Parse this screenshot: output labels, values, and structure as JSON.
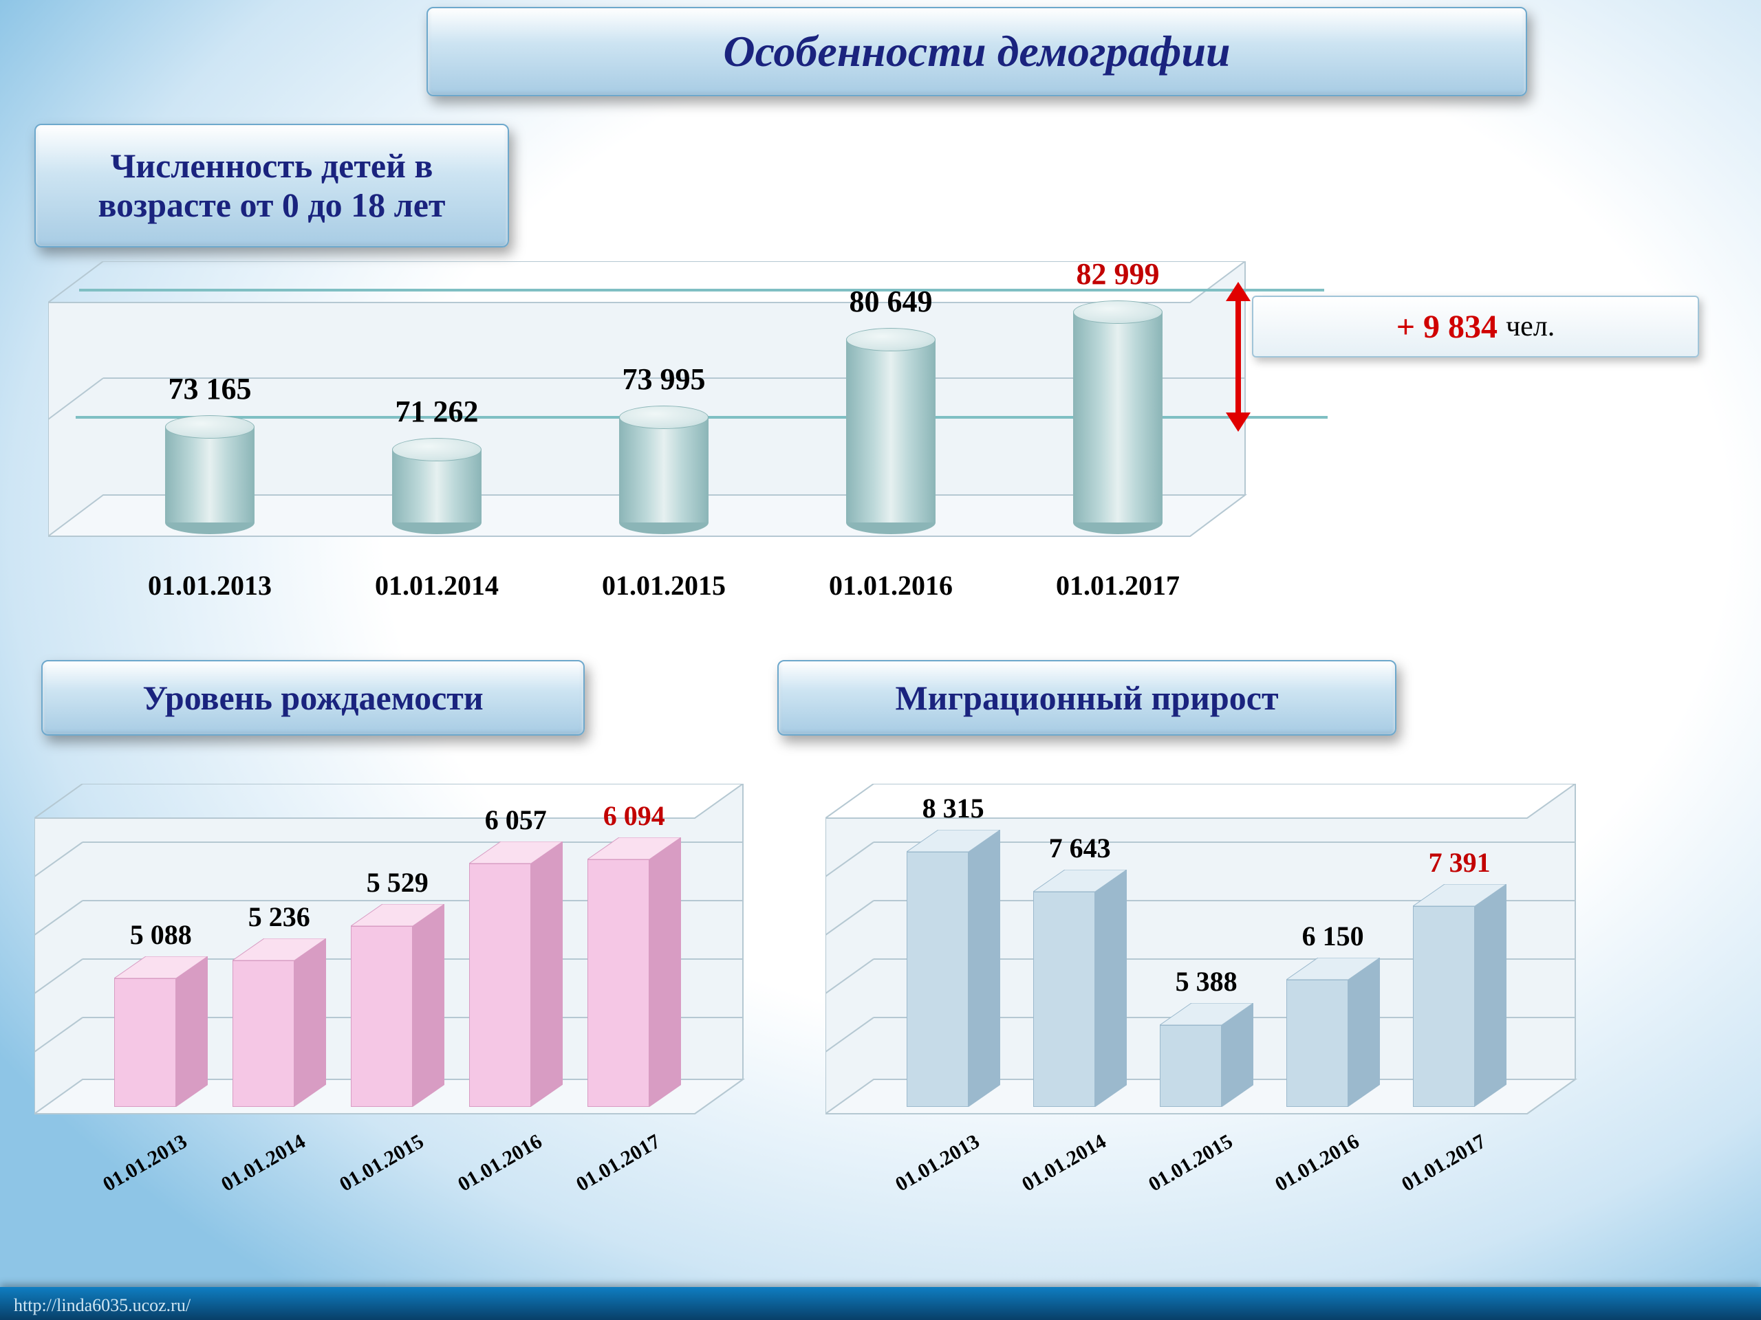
{
  "main_title": "Особенности демографии",
  "footer": "http://linda6035.ucoz.ru/",
  "callout": {
    "value": "+ 9 834",
    "unit": "чел."
  },
  "chart1": {
    "title": "Численность детей в возрасте от 0 до 18 лет",
    "type": "cylinder-bar-3d",
    "categories": [
      "01.01.2013",
      "01.01.2014",
      "01.01.2015",
      "01.01.2016",
      "01.01.2017"
    ],
    "values": [
      73165,
      71262,
      73995,
      80649,
      82999
    ],
    "labels": [
      "73 165",
      "71 262",
      "73 995",
      "80 649",
      "82 999"
    ],
    "last_label_color": "#c20000",
    "bar_color": "#bcd8d9",
    "bar_color_dark": "#8bb5b7",
    "bar_color_top": "#d8e8e9",
    "label_fontsize": 44,
    "category_fontsize": 40,
    "floor_color": "#f4f8fb",
    "back_color": "#eef4f8",
    "grid_color": "#b5c8d2",
    "hline_color": "#7fbfc3",
    "ylim": [
      65000,
      85000
    ],
    "arrow_color": "#e00000"
  },
  "chart2": {
    "title": "Уровень рождаемости",
    "type": "box-bar-3d",
    "categories": [
      "01.01.2013",
      "01.01.2014",
      "01.01.2015",
      "01.01.2016",
      "01.01.2017"
    ],
    "values": [
      5088,
      5236,
      5529,
      6057,
      6094
    ],
    "labels": [
      "5 088",
      "5 236",
      "5 529",
      "6 057",
      "6 094"
    ],
    "last_label_color": "#c20000",
    "bar_front": "#f5c7e5",
    "bar_side": "#d89cc3",
    "bar_top": "#fae0f0",
    "label_fontsize": 40,
    "category_fontsize": 30,
    "floor_color": "#f4f8fb",
    "back_color": "#eef4f8",
    "grid_color": "#b5c8d2",
    "ylim": [
      4000,
      6500
    ]
  },
  "chart3": {
    "title": "Миграционный прирост",
    "type": "box-bar-3d",
    "categories": [
      "01.01.2013",
      "01.01.2014",
      "01.01.2015",
      "01.01.2016",
      "01.01.2017"
    ],
    "values": [
      8315,
      7643,
      5388,
      6150,
      7391
    ],
    "labels": [
      "8 315",
      "7 643",
      "5 388",
      "6 150",
      "7 391"
    ],
    "last_label_color": "#c20000",
    "bar_front": "#c6dbe8",
    "bar_side": "#9bb9cd",
    "bar_top": "#e3eef5",
    "label_fontsize": 40,
    "category_fontsize": 30,
    "floor_color": "#f4f8fb",
    "back_color": "#eef4f8",
    "grid_color": "#b5c8d2",
    "ylim": [
      4000,
      9000
    ]
  }
}
